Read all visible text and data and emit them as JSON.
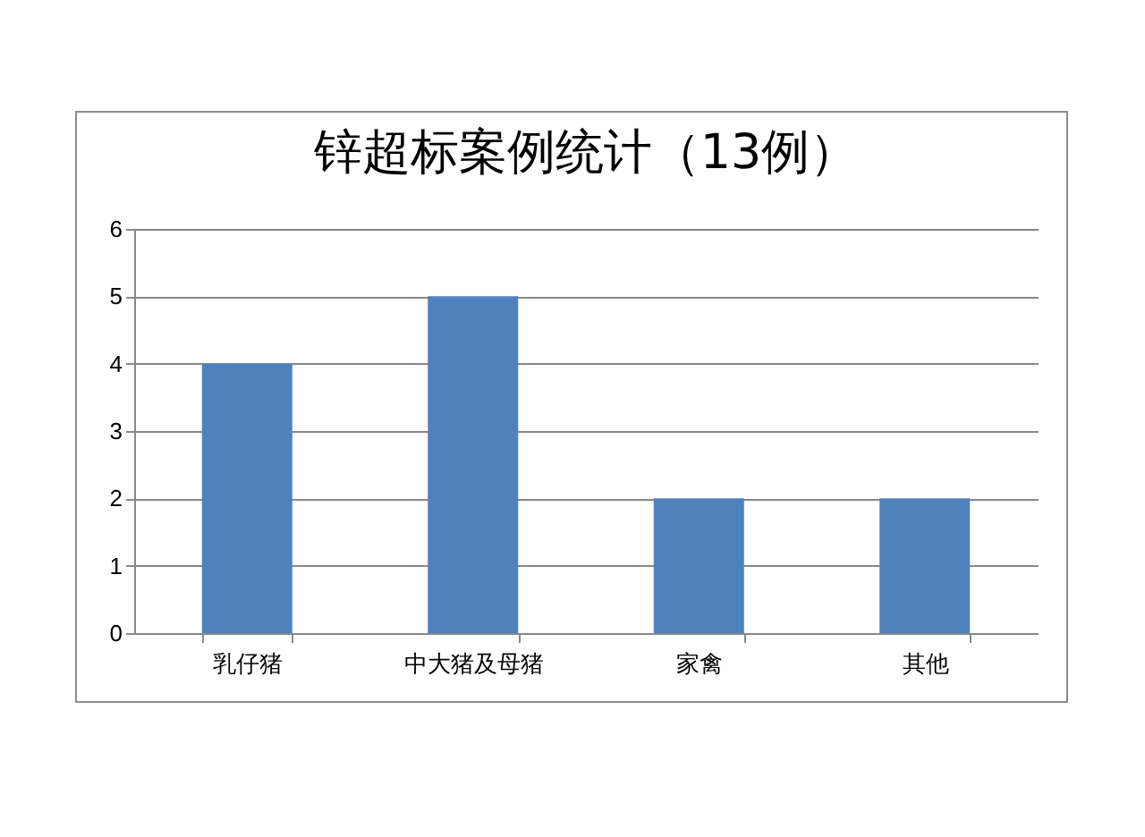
{
  "chart_data": {
    "type": "bar",
    "title": "锌超标案例统计（13例）",
    "categories": [
      "乳仔猪",
      "中大猪及母猪",
      "家禽",
      "其他"
    ],
    "values": [
      4,
      5,
      2,
      2
    ],
    "color": "#4f81bd",
    "ylim": [
      0,
      6
    ],
    "yticks": [
      0,
      1,
      2,
      3,
      4,
      5,
      6
    ],
    "grid": "y"
  }
}
